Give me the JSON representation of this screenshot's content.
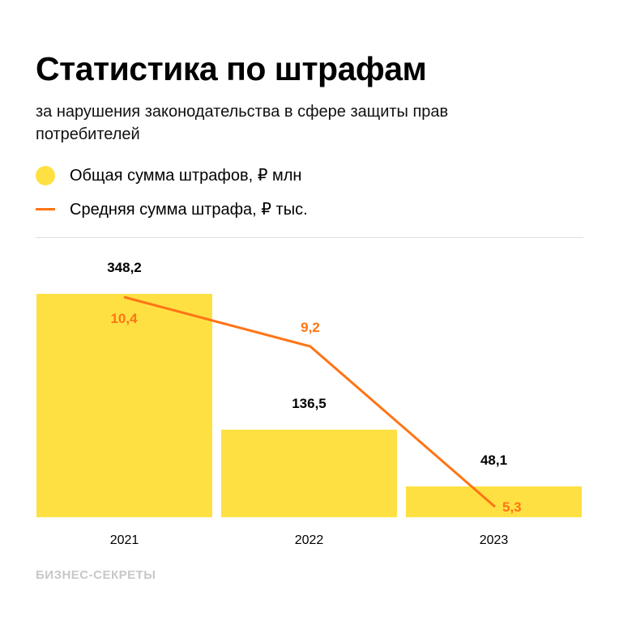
{
  "title": "Статистика по штрафам",
  "subtitle": "за нарушения законодательства в сфере защиты прав потребителей",
  "brand": "БИЗНЕС-СЕКРЕТЫ",
  "colors": {
    "bar": "#FFE043",
    "line": "#FF7415"
  },
  "chart_data": {
    "type": "bar",
    "categories": [
      "2021",
      "2022",
      "2023"
    ],
    "series": [
      {
        "name": "Общая сумма штрафов, ₽ млн",
        "type": "bar",
        "values": [
          348.2,
          136.5,
          48.1
        ],
        "labels": [
          "348,2",
          "136,5",
          "48,1"
        ]
      },
      {
        "name": "Средняя сумма штрафа, ₽ тыс.",
        "type": "line",
        "values": [
          10.4,
          9.2,
          5.3
        ],
        "labels": [
          "10,4",
          "9,2",
          "5,3"
        ]
      }
    ],
    "legend": "top-left",
    "grid": false
  }
}
